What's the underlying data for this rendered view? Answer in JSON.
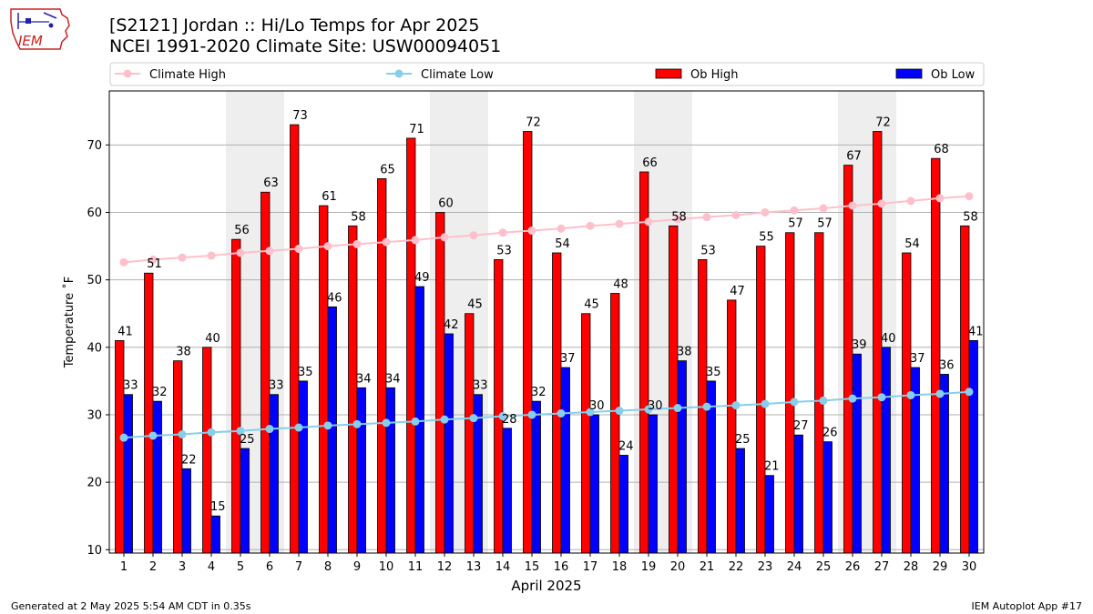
{
  "header": {
    "title_line1": "[S2121] Jordan :: Hi/Lo Temps for Apr 2025",
    "title_line2": "NCEI 1991-2020 Climate Site: USW00094051",
    "logo_text": "IEM"
  },
  "footer": {
    "left": "Generated at 2 May 2025 5:54 AM CDT in 0.35s",
    "right": "IEM Autoplot App #17"
  },
  "colors": {
    "ob_high": "#ff0000",
    "ob_low": "#0000ff",
    "climate_high": "#ffc0cb",
    "climate_low": "#87ceeb",
    "weekend_shade": "#eeeeee",
    "grid": "#b0b0b0"
  },
  "chart_data": {
    "type": "bar",
    "xlabel": "April 2025",
    "ylabel": "Temperature ˚F",
    "ylim": [
      9.5,
      78
    ],
    "yticks": [
      10,
      20,
      30,
      40,
      50,
      60,
      70
    ],
    "grid": "horizontal",
    "legend_position": "top",
    "categories": [
      "1",
      "2",
      "3",
      "4",
      "5",
      "6",
      "7",
      "8",
      "9",
      "10",
      "11",
      "12",
      "13",
      "14",
      "15",
      "16",
      "17",
      "18",
      "19",
      "20",
      "21",
      "22",
      "23",
      "24",
      "25",
      "26",
      "27",
      "28",
      "29",
      "30"
    ],
    "shaded_periods": [
      [
        5,
        6
      ],
      [
        12,
        13
      ],
      [
        19,
        20
      ],
      [
        26,
        27
      ]
    ],
    "series": [
      {
        "name": "Ob High",
        "type": "bar",
        "values": [
          41,
          51,
          38,
          40,
          56,
          63,
          73,
          61,
          58,
          65,
          71,
          60,
          45,
          53,
          72,
          54,
          45,
          48,
          66,
          58,
          53,
          47,
          55,
          57,
          57,
          67,
          72,
          54,
          68,
          58
        ],
        "labels": [
          "41",
          "51",
          "38",
          "40",
          "56",
          "63",
          "73",
          "61",
          "58",
          "65",
          "71",
          "60",
          "45",
          "53",
          "72",
          "54",
          "45",
          "48",
          "66",
          "58",
          "53",
          "47",
          "55",
          "57",
          "57",
          "67",
          "72",
          "54",
          "68",
          "58"
        ]
      },
      {
        "name": "Ob Low",
        "type": "bar",
        "values": [
          33,
          32,
          22,
          15,
          25,
          33,
          35,
          46,
          34,
          34,
          49,
          42,
          33,
          28,
          32,
          37,
          30,
          24,
          30,
          38,
          35,
          25,
          21,
          27,
          26,
          39,
          40,
          37,
          36,
          41
        ],
        "labels": [
          "33",
          "32",
          "22",
          "15",
          "25",
          "33",
          "35",
          "46",
          "34",
          "34",
          "49",
          "42",
          "33",
          "28",
          "32",
          "37",
          "30",
          "24",
          "30",
          "38",
          "35",
          "25",
          "21",
          "27",
          "26",
          "39",
          "40",
          "37",
          "36",
          "41"
        ]
      },
      {
        "name": "Climate High",
        "type": "line",
        "values": [
          52.6,
          53.0,
          53.3,
          53.6,
          54.0,
          54.3,
          54.6,
          55.0,
          55.3,
          55.6,
          55.9,
          56.3,
          56.6,
          57.0,
          57.3,
          57.6,
          58.0,
          58.3,
          58.6,
          59.0,
          59.3,
          59.6,
          60.0,
          60.3,
          60.6,
          61.0,
          61.3,
          61.7,
          62.1,
          62.4
        ]
      },
      {
        "name": "Climate Low",
        "type": "line",
        "values": [
          26.6,
          26.9,
          27.1,
          27.4,
          27.6,
          27.9,
          28.1,
          28.4,
          28.6,
          28.8,
          29.0,
          29.3,
          29.5,
          29.8,
          30.0,
          30.2,
          30.4,
          30.6,
          30.8,
          31.0,
          31.2,
          31.4,
          31.6,
          31.9,
          32.1,
          32.4,
          32.6,
          32.9,
          33.1,
          33.4
        ]
      }
    ]
  }
}
